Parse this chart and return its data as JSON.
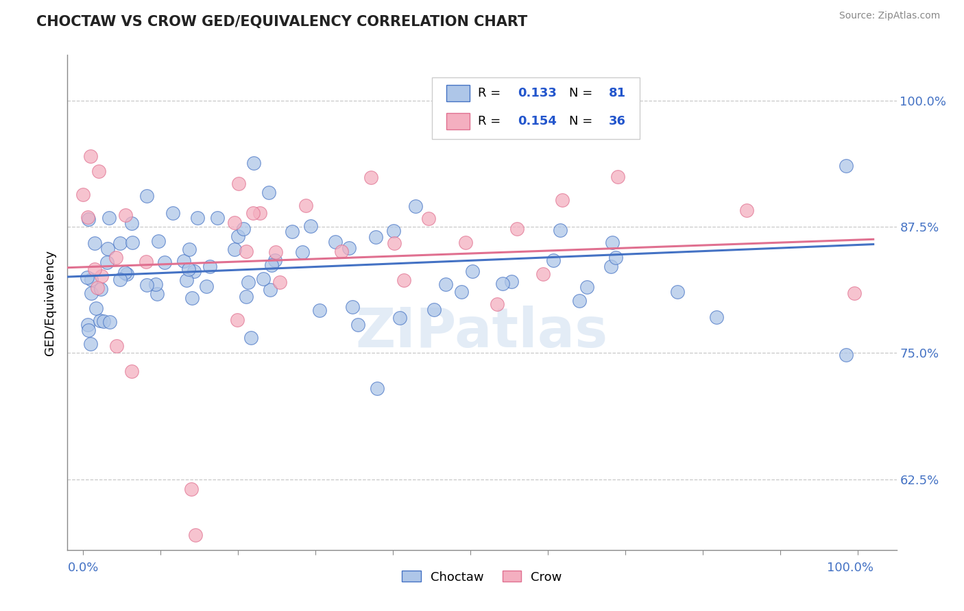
{
  "title": "CHOCTAW VS CROW GED/EQUIVALENCY CORRELATION CHART",
  "source": "Source: ZipAtlas.com",
  "ylabel": "GED/Equivalency",
  "yticks": [
    0.625,
    0.75,
    0.875,
    1.0
  ],
  "ytick_labels": [
    "62.5%",
    "75.0%",
    "87.5%",
    "100.0%"
  ],
  "xlim": [
    -0.02,
    1.05
  ],
  "ylim": [
    0.555,
    1.045
  ],
  "choctaw_R": 0.133,
  "choctaw_N": 81,
  "crow_R": 0.154,
  "crow_N": 36,
  "choctaw_color": "#aec6e8",
  "crow_color": "#f4afc0",
  "choctaw_line_color": "#4472c4",
  "crow_line_color": "#e07090",
  "background_color": "#ffffff",
  "watermark": "ZIPatlas",
  "legend_R_color": "#2255cc"
}
